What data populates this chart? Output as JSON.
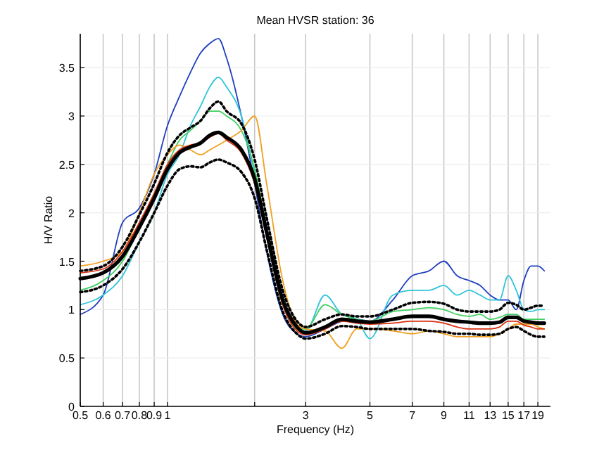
{
  "chart_data": {
    "type": "line",
    "title": "Mean HVSR station: 36",
    "xlabel": "Frequency (Hz)",
    "ylabel": "H/V Ratio",
    "log": "x",
    "grid": true,
    "x": [
      0.5,
      0.6,
      0.7,
      0.8,
      0.9,
      1,
      1.1,
      1.2,
      1.3,
      1.4,
      1.5,
      1.6,
      1.8,
      2,
      2.2,
      2.5,
      2.8,
      3,
      3.5,
      4,
      4.5,
      5,
      6,
      7,
      8,
      9,
      10,
      11,
      12,
      13,
      14,
      15,
      16,
      17,
      18,
      19,
      20
    ],
    "xlim": [
      0.5,
      21
    ],
    "ylim": [
      0,
      3.85
    ],
    "xticks": [
      0.5,
      0.6,
      0.7,
      0.8,
      0.9,
      1,
      {
        "value": 2,
        "label": null
      },
      3,
      5,
      7,
      9,
      11,
      13,
      15,
      17,
      19
    ],
    "yticks": [
      0,
      0.5,
      1,
      1.5,
      2,
      2.5,
      3,
      3.5
    ],
    "series": [
      {
        "color": "#1f3fbf",
        "values": [
          0.95,
          1.15,
          1.9,
          2.05,
          2.4,
          2.9,
          3.2,
          3.45,
          3.65,
          3.75,
          3.8,
          3.6,
          3.0,
          2.3,
          1.6,
          0.95,
          0.75,
          0.72,
          0.8,
          0.88,
          0.9,
          0.88,
          1.1,
          1.35,
          1.4,
          1.5,
          1.35,
          1.3,
          1.25,
          1.15,
          1.1,
          1.1,
          1.0,
          1.3,
          1.45,
          1.45,
          1.4
        ]
      },
      {
        "color": "#2fc4d8",
        "values": [
          1.05,
          1.15,
          1.35,
          1.7,
          2.0,
          2.4,
          2.6,
          2.9,
          3.1,
          3.3,
          3.4,
          3.3,
          3.0,
          2.4,
          1.75,
          1.05,
          0.8,
          0.78,
          1.15,
          0.95,
          0.9,
          0.7,
          1.15,
          1.2,
          1.2,
          1.25,
          1.15,
          1.2,
          1.15,
          1.1,
          1.1,
          1.35,
          1.2,
          1.0,
          0.98,
          1.0,
          1.0
        ]
      },
      {
        "color": "#40d060",
        "values": [
          1.2,
          1.3,
          1.5,
          1.85,
          2.2,
          2.5,
          2.75,
          2.85,
          2.95,
          3.05,
          3.05,
          3.0,
          2.85,
          2.45,
          1.85,
          1.1,
          0.8,
          0.8,
          1.05,
          0.95,
          0.9,
          0.88,
          0.98,
          1.0,
          1.02,
          1.0,
          0.95,
          0.93,
          0.95,
          0.9,
          0.92,
          0.95,
          0.95,
          0.9,
          0.9,
          0.9,
          0.9
        ]
      },
      {
        "color": "#f0a020",
        "values": [
          1.45,
          1.5,
          1.6,
          2.0,
          2.4,
          2.6,
          2.7,
          2.65,
          2.6,
          2.65,
          2.7,
          2.75,
          2.85,
          3.0,
          2.3,
          1.3,
          0.85,
          0.8,
          0.78,
          0.6,
          0.8,
          0.8,
          0.78,
          0.75,
          0.78,
          0.75,
          0.72,
          0.72,
          0.72,
          0.72,
          0.75,
          0.8,
          0.85,
          0.85,
          0.85,
          0.82,
          0.8
        ]
      },
      {
        "color": "#d83010",
        "values": [
          1.38,
          1.42,
          1.6,
          1.9,
          2.2,
          2.5,
          2.65,
          2.7,
          2.72,
          2.78,
          2.82,
          2.75,
          2.62,
          2.3,
          1.75,
          1.05,
          0.78,
          0.74,
          0.8,
          0.88,
          0.86,
          0.85,
          0.86,
          0.88,
          0.88,
          0.86,
          0.82,
          0.8,
          0.8,
          0.8,
          0.82,
          0.88,
          0.88,
          0.84,
          0.82,
          0.8,
          0.8
        ]
      },
      {
        "color": "#000000",
        "line_style": "solid",
        "values": [
          1.32,
          1.38,
          1.55,
          1.85,
          2.15,
          2.45,
          2.62,
          2.68,
          2.72,
          2.8,
          2.83,
          2.78,
          2.65,
          2.35,
          1.8,
          1.1,
          0.82,
          0.76,
          0.82,
          0.9,
          0.88,
          0.87,
          0.9,
          0.93,
          0.93,
          0.9,
          0.88,
          0.87,
          0.86,
          0.86,
          0.87,
          0.92,
          0.92,
          0.88,
          0.87,
          0.86,
          0.86
        ]
      },
      {
        "color": "#000000",
        "line_style": "dotted",
        "values": [
          1.4,
          1.45,
          1.65,
          1.98,
          2.3,
          2.62,
          2.8,
          2.88,
          2.95,
          3.08,
          3.15,
          3.05,
          2.92,
          2.55,
          1.95,
          1.2,
          0.88,
          0.82,
          0.9,
          0.95,
          0.93,
          0.93,
          1.0,
          1.07,
          1.08,
          1.06,
          1.0,
          0.98,
          0.98,
          0.98,
          1.0,
          1.07,
          1.05,
          1.0,
          1.02,
          1.04,
          1.04
        ]
      },
      {
        "color": "#000000",
        "line_style": "dotted",
        "values": [
          1.18,
          1.25,
          1.42,
          1.7,
          2.0,
          2.28,
          2.45,
          2.48,
          2.47,
          2.52,
          2.55,
          2.52,
          2.42,
          2.15,
          1.62,
          0.98,
          0.75,
          0.7,
          0.75,
          0.83,
          0.82,
          0.8,
          0.8,
          0.8,
          0.78,
          0.77,
          0.75,
          0.75,
          0.74,
          0.74,
          0.75,
          0.8,
          0.82,
          0.78,
          0.74,
          0.72,
          0.72
        ]
      }
    ]
  }
}
